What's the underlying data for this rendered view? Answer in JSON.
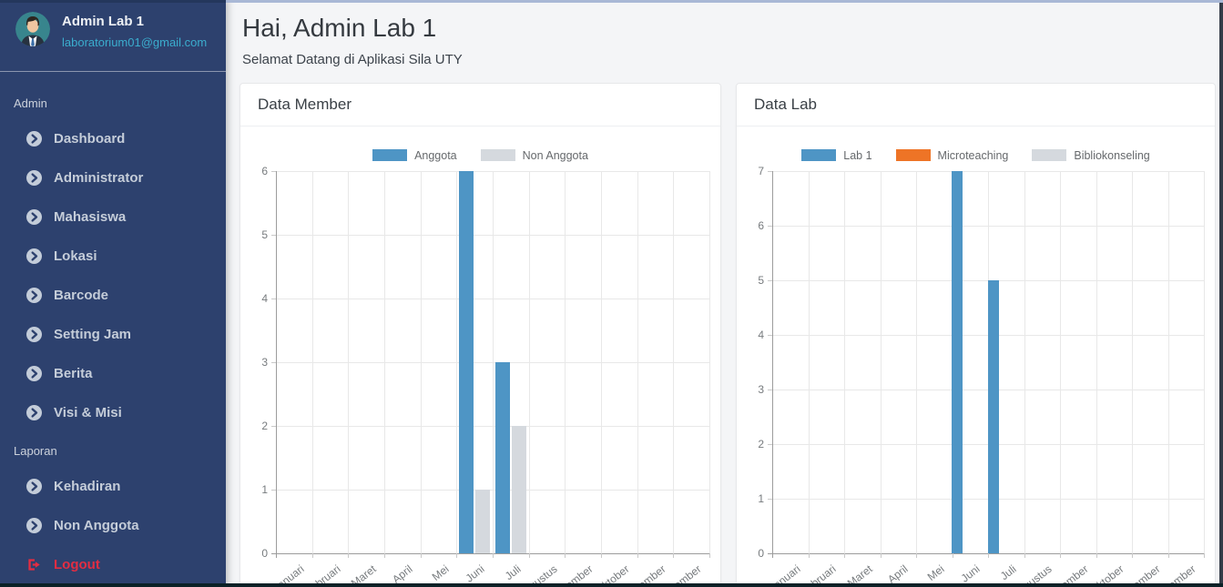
{
  "colors": {
    "sidebar_bg": "#2d416e",
    "email_accent": "#3badce",
    "logout_red": "#e22d42",
    "bar_blue": "#4e95c5",
    "bar_orange": "#ee7426",
    "bar_gray": "#d5d9de"
  },
  "sidebar": {
    "user": {
      "name": "Admin Lab 1",
      "email": "laboratorium01@gmail.com"
    },
    "sections": [
      {
        "label": "Admin",
        "items": [
          "Dashboard",
          "Administrator",
          "Mahasiswa",
          "Lokasi",
          "Barcode",
          "Setting Jam",
          "Berita",
          "Visi & Misi"
        ]
      },
      {
        "label": "Laporan",
        "items": [
          "Kehadiran",
          "Non Anggota"
        ]
      }
    ],
    "logout_label": "Logout"
  },
  "header": {
    "greeting": "Hai, Admin Lab 1",
    "subtitle": "Selamat Datang di Aplikasi Sila UTY"
  },
  "chart_data": [
    {
      "type": "bar",
      "title": "Data Member",
      "categories": [
        "Januari",
        "Februari",
        "Maret",
        "April",
        "Mei",
        "Juni",
        "Juli",
        "Agustus",
        "September",
        "Oktober",
        "November",
        "Desember"
      ],
      "series": [
        {
          "name": "Anggota",
          "color": "#4e95c5",
          "values": [
            0,
            0,
            0,
            0,
            0,
            6,
            3,
            0,
            0,
            0,
            0,
            0
          ]
        },
        {
          "name": "Non Anggota",
          "color": "#d5d9de",
          "values": [
            0,
            0,
            0,
            0,
            0,
            1,
            2,
            0,
            0,
            0,
            0,
            0
          ]
        }
      ],
      "xlabel": "",
      "ylabel": "",
      "ylim": [
        0,
        6
      ],
      "ytick_step": 1,
      "grid": true,
      "legend_position": "top"
    },
    {
      "type": "bar",
      "title": "Data Lab",
      "categories": [
        "Januari",
        "Februari",
        "Maret",
        "April",
        "Mei",
        "Juni",
        "Juli",
        "Agustus",
        "September",
        "Oktober",
        "November",
        "Desember"
      ],
      "series": [
        {
          "name": "Lab 1",
          "color": "#4e95c5",
          "values": [
            0,
            0,
            0,
            0,
            0,
            7,
            5,
            0,
            0,
            0,
            0,
            0
          ]
        },
        {
          "name": "Microteaching",
          "color": "#ee7426",
          "values": [
            0,
            0,
            0,
            0,
            0,
            0,
            0,
            0,
            0,
            0,
            0,
            0
          ]
        },
        {
          "name": "Bibliokonseling",
          "color": "#d5d9de",
          "values": [
            0,
            0,
            0,
            0,
            0,
            0,
            0,
            0,
            0,
            0,
            0,
            0
          ]
        }
      ],
      "xlabel": "",
      "ylabel": "",
      "ylim": [
        0,
        7
      ],
      "ytick_step": 1,
      "grid": true,
      "legend_position": "top"
    }
  ]
}
